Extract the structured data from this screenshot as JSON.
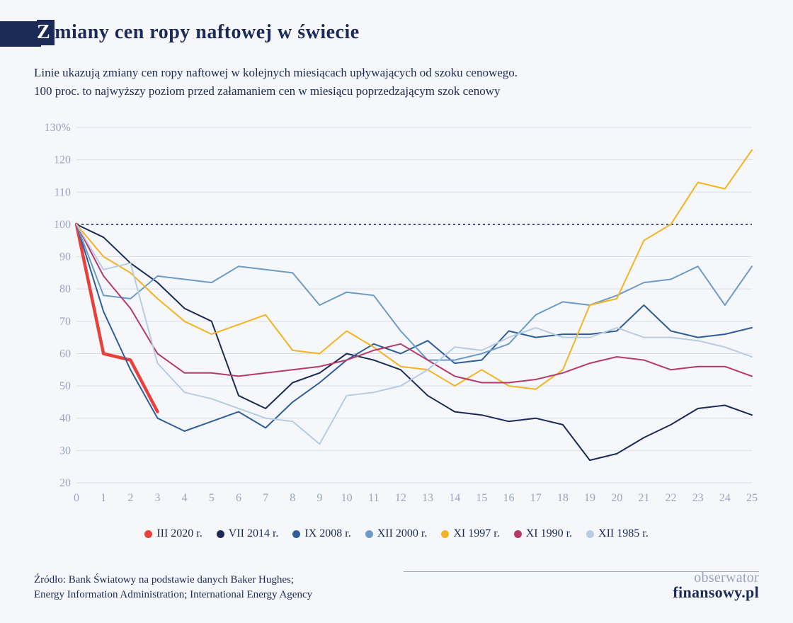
{
  "title_initial": "Z",
  "title_rest": "miany cen ropy naftowej w świecie",
  "subtitle_line1": "Linie ukazują zmiany cen ropy naftowej w kolejnych miesiącach upływających od szoku cenowego.",
  "subtitle_line2": "100 proc. to najwyższy poziom przed załamaniem cen w miesiącu poprzedzającym szok cenowy",
  "source_line1": "Źródło: Bank Światowy na podstawie danych Baker Hughes;",
  "source_line2": "Energy Information Administration; International Energy Agency",
  "brand_line1": "obserwator",
  "brand_line2": "finansowy.pl",
  "chart": {
    "type": "line",
    "background_color": "#f5f7fa",
    "grid_color": "#d9dee8",
    "axis_text_color": "#99a4bf",
    "axis_fontsize": 16,
    "x": {
      "min": 0,
      "max": 25,
      "ticks": [
        0,
        1,
        2,
        3,
        4,
        5,
        6,
        7,
        8,
        9,
        10,
        11,
        12,
        13,
        14,
        15,
        16,
        17,
        18,
        19,
        20,
        21,
        22,
        23,
        24,
        25
      ]
    },
    "y": {
      "min": 20,
      "max": 130,
      "ticks": [
        20,
        30,
        40,
        50,
        60,
        70,
        80,
        90,
        100,
        110,
        120,
        130
      ],
      "suffix_first": "%"
    },
    "ref_line": {
      "y": 100,
      "color": "#1b2a56",
      "dash": "3,4",
      "width": 1.6
    },
    "series": [
      {
        "name": "III 2020 r.",
        "color": "#e8403a",
        "width": 4.5,
        "data": [
          100,
          60,
          58,
          42
        ]
      },
      {
        "name": "VII 2014 r.",
        "color": "#1b2a56",
        "width": 2,
        "data": [
          100,
          96,
          88,
          82,
          74,
          70,
          47,
          43,
          51,
          54,
          60,
          58,
          55,
          47,
          42,
          41,
          39,
          40,
          38,
          27,
          29,
          34,
          38,
          43,
          44,
          41
        ]
      },
      {
        "name": "IX 2008 r.",
        "color": "#2e5e99",
        "width": 2,
        "data": [
          100,
          73,
          55,
          40,
          36,
          39,
          42,
          37,
          45,
          51,
          58,
          63,
          60,
          64,
          57,
          58,
          67,
          65,
          66,
          66,
          67,
          75,
          67,
          65,
          66,
          68
        ]
      },
      {
        "name": "XII 2000 r.",
        "color": "#6b9cc7",
        "width": 2,
        "data": [
          100,
          78,
          77,
          84,
          83,
          82,
          87,
          86,
          85,
          75,
          79,
          78,
          67,
          58,
          58,
          60,
          63,
          72,
          76,
          75,
          78,
          82,
          83,
          87,
          75,
          87
        ]
      },
      {
        "name": "XI 1997 r.",
        "color": "#f4b322",
        "width": 2,
        "data": [
          100,
          90,
          85,
          77,
          70,
          66,
          69,
          72,
          61,
          60,
          67,
          62,
          56,
          55,
          50,
          55,
          50,
          49,
          55,
          75,
          77,
          95,
          100,
          113,
          111,
          123
        ]
      },
      {
        "name": "XI 1990 r.",
        "color": "#b53a6a",
        "width": 2,
        "data": [
          100,
          84,
          74,
          60,
          54,
          54,
          53,
          54,
          55,
          56,
          58,
          61,
          63,
          58,
          53,
          51,
          51,
          52,
          54,
          57,
          59,
          58,
          55,
          56,
          56,
          53
        ]
      },
      {
        "name": "XII 1985 r.",
        "color": "#b8cce4",
        "width": 2,
        "data": [
          100,
          86,
          88,
          57,
          48,
          46,
          43,
          40,
          39,
          32,
          47,
          48,
          50,
          55,
          62,
          61,
          65,
          68,
          65,
          65,
          68,
          65,
          65,
          64,
          62,
          59
        ]
      }
    ]
  }
}
